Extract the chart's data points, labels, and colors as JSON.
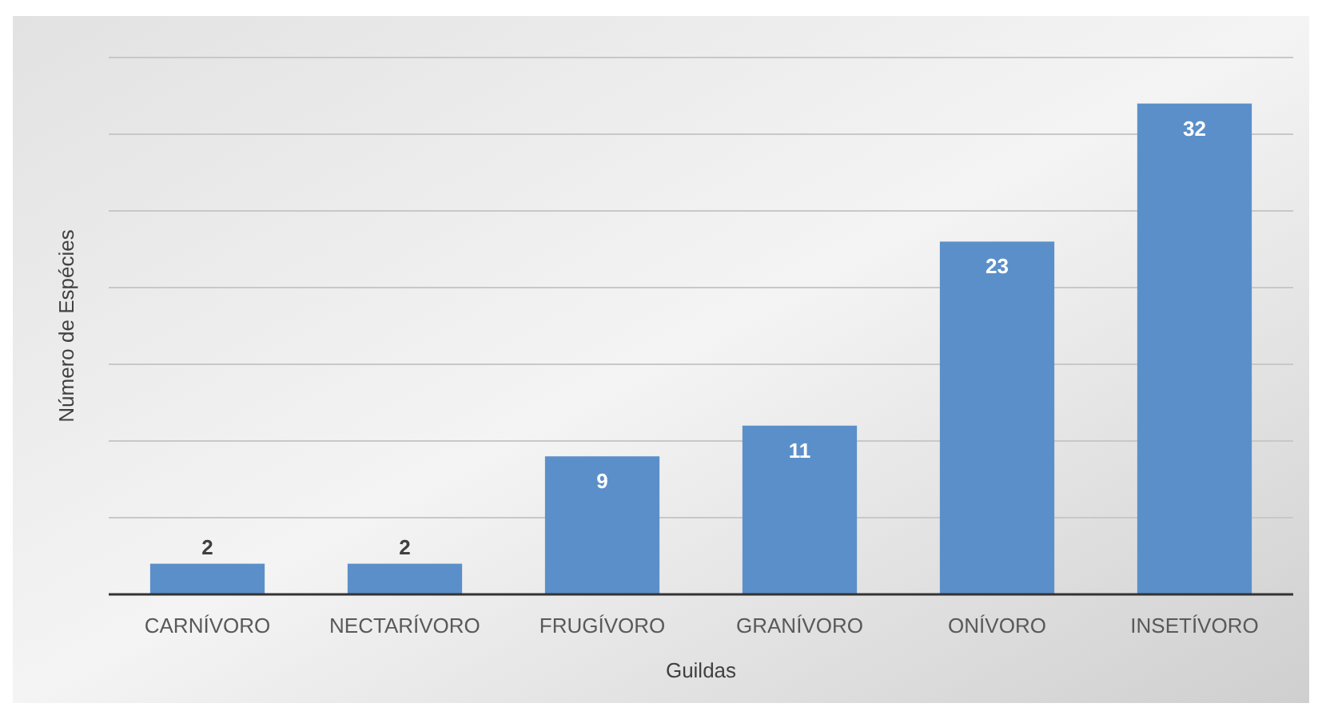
{
  "chart_data": {
    "type": "bar",
    "xlabel": "Guildas",
    "ylabel": "Número de Espécies",
    "categories": [
      "CARNÍVORO",
      "NECTARÍVORO",
      "FRUGÍVORO",
      "GRANÍVORO",
      "ONÍVORO",
      "INSETÍVORO"
    ],
    "values": [
      2,
      2,
      9,
      11,
      23,
      32
    ],
    "color": "#5b8fc9",
    "data_labels": true,
    "ylim": [
      0,
      35
    ],
    "yticks": [
      {
        "value": 0,
        "label": null
      },
      {
        "value": 5,
        "label": null
      },
      {
        "value": 10,
        "label": null
      },
      {
        "value": 15,
        "label": null
      },
      {
        "value": 20,
        "label": null
      },
      {
        "value": 25,
        "label": null
      },
      {
        "value": 30,
        "label": null
      },
      {
        "value": 35,
        "label": null
      }
    ],
    "grid": "y",
    "tick_labels": "x"
  }
}
